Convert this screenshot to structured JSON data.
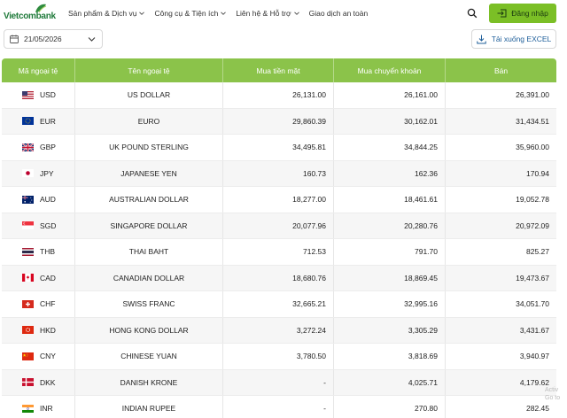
{
  "brand": {
    "name": "Vietcombank",
    "color": "#1f7a3a"
  },
  "nav": [
    {
      "label": "Sản phẩm & Dịch vụ",
      "has_dropdown": true
    },
    {
      "label": "Công cụ & Tiện ích",
      "has_dropdown": true
    },
    {
      "label": "Liên hệ & Hỗ trợ",
      "has_dropdown": true
    },
    {
      "label": "Giao dịch an toàn",
      "has_dropdown": false
    }
  ],
  "header": {
    "search_icon": "search-icon",
    "login_label": "Đăng nhập",
    "accent": "#7bbf26"
  },
  "toolbar": {
    "date": "21/05/2026",
    "excel_label": "Tải xuống EXCEL"
  },
  "table": {
    "headers": [
      "Mã ngoại tệ",
      "Tên ngoại tệ",
      "Mua tiền mặt",
      "Mua chuyển khoản",
      "Bán"
    ],
    "header_color": "#8bc34a",
    "rows": [
      {
        "code": "USD",
        "name": "US DOLLAR",
        "cash": "26,131.00",
        "transfer": "26,161.00",
        "sell": "26,391.00",
        "flag": "us"
      },
      {
        "code": "EUR",
        "name": "EURO",
        "cash": "29,860.39",
        "transfer": "30,162.01",
        "sell": "31,434.51",
        "flag": "eu"
      },
      {
        "code": "GBP",
        "name": "UK POUND STERLING",
        "cash": "34,495.81",
        "transfer": "34,844.25",
        "sell": "35,960.00",
        "flag": "gb"
      },
      {
        "code": "JPY",
        "name": "JAPANESE YEN",
        "cash": "160.73",
        "transfer": "162.36",
        "sell": "170.94",
        "flag": "jp"
      },
      {
        "code": "AUD",
        "name": "AUSTRALIAN DOLLAR",
        "cash": "18,277.00",
        "transfer": "18,461.61",
        "sell": "19,052.78",
        "flag": "au"
      },
      {
        "code": "SGD",
        "name": "SINGAPORE DOLLAR",
        "cash": "20,077.96",
        "transfer": "20,280.76",
        "sell": "20,972.09",
        "flag": "sg"
      },
      {
        "code": "THB",
        "name": "THAI BAHT",
        "cash": "712.53",
        "transfer": "791.70",
        "sell": "825.27",
        "flag": "th"
      },
      {
        "code": "CAD",
        "name": "CANADIAN DOLLAR",
        "cash": "18,680.76",
        "transfer": "18,869.45",
        "sell": "19,473.67",
        "flag": "ca"
      },
      {
        "code": "CHF",
        "name": "SWISS FRANC",
        "cash": "32,665.21",
        "transfer": "32,995.16",
        "sell": "34,051.70",
        "flag": "ch"
      },
      {
        "code": "HKD",
        "name": "HONG KONG DOLLAR",
        "cash": "3,272.24",
        "transfer": "3,305.29",
        "sell": "3,431.67",
        "flag": "hk"
      },
      {
        "code": "CNY",
        "name": "CHINESE YUAN",
        "cash": "3,780.50",
        "transfer": "3,818.69",
        "sell": "3,940.97",
        "flag": "cn"
      },
      {
        "code": "DKK",
        "name": "DANISH KRONE",
        "cash": "-",
        "transfer": "4,025.71",
        "sell": "4,179.62",
        "flag": "dk"
      },
      {
        "code": "INR",
        "name": "INDIAN RUPEE",
        "cash": "-",
        "transfer": "270.80",
        "sell": "282.45",
        "flag": "in"
      }
    ]
  },
  "watermark": {
    "line1": "Activ",
    "line2": "Go to"
  }
}
